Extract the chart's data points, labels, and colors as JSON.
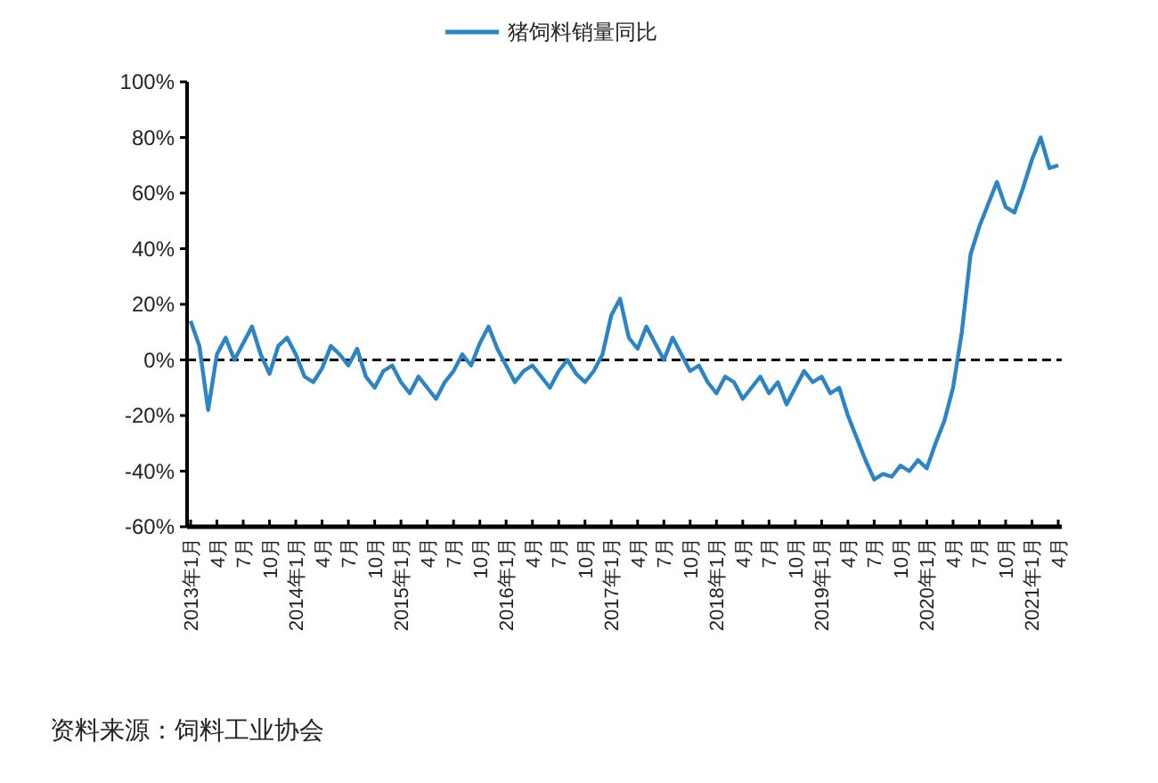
{
  "chart_data": {
    "type": "line",
    "categories": [
      "2013年1月",
      null,
      null,
      "4月",
      null,
      null,
      "7月",
      null,
      null,
      "10月",
      null,
      null,
      "2014年1月",
      null,
      null,
      "4月",
      null,
      null,
      "7月",
      null,
      null,
      "10月",
      null,
      null,
      "2015年1月",
      null,
      null,
      "4月",
      null,
      null,
      "7月",
      null,
      null,
      "10月",
      null,
      null,
      "2016年1月",
      null,
      null,
      "4月",
      null,
      null,
      "7月",
      null,
      null,
      "10月",
      null,
      null,
      "2017年1月",
      null,
      null,
      "4月",
      null,
      null,
      "7月",
      null,
      null,
      "10月",
      null,
      null,
      "2018年1月",
      null,
      null,
      "4月",
      null,
      null,
      "7月",
      null,
      null,
      "10月",
      null,
      null,
      "2019年1月",
      null,
      null,
      "4月",
      null,
      null,
      "7月",
      null,
      null,
      "10月",
      null,
      null,
      "2020年1月",
      null,
      null,
      "4月",
      null,
      null,
      "7月",
      null,
      null,
      "10月",
      null,
      null,
      "2021年1月",
      null,
      null,
      "4月"
    ],
    "series": [
      {
        "name": "猪饲料销量同比",
        "color": "#2a84c6",
        "values": [
          14,
          5,
          -18,
          2,
          8,
          0,
          6,
          12,
          2,
          -5,
          5,
          8,
          2,
          -6,
          -8,
          -3,
          5,
          2,
          -2,
          4,
          -6,
          -10,
          -4,
          -2,
          -8,
          -12,
          -6,
          -10,
          -14,
          -8,
          -4,
          2,
          -2,
          6,
          12,
          4,
          -2,
          -8,
          -4,
          -2,
          -6,
          -10,
          -4,
          0,
          -5,
          -8,
          -4,
          2,
          16,
          22,
          8,
          4,
          12,
          6,
          0,
          8,
          2,
          -4,
          -2,
          -8,
          -12,
          -6,
          -8,
          -14,
          -10,
          -6,
          -12,
          -8,
          -16,
          -10,
          -4,
          -8,
          -6,
          -12,
          -10,
          -20,
          -28,
          -36,
          -43,
          -41,
          -42,
          -38,
          -40,
          -36,
          -39,
          -30,
          -22,
          -10,
          10,
          38,
          48,
          56,
          64,
          55,
          53,
          62,
          72,
          80,
          69,
          70
        ]
      }
    ],
    "ylim": [
      -60,
      100
    ],
    "yticks": [
      {
        "value": -60,
        "label": "-60%"
      },
      {
        "value": -40,
        "label": "-40%"
      },
      {
        "value": -20,
        "label": "-20%"
      },
      {
        "value": 0,
        "label": "0%"
      },
      {
        "value": 20,
        "label": "20%"
      },
      {
        "value": 40,
        "label": "40%"
      },
      {
        "value": 60,
        "label": "60%"
      },
      {
        "value": 80,
        "label": "80%"
      },
      {
        "value": 100,
        "label": "100%"
      }
    ],
    "ref_lines": [
      {
        "axis": "y",
        "value": 0,
        "color": "#000000",
        "line_style": "dashed"
      }
    ],
    "legend": "top",
    "grid": false,
    "annotations": [
      "资料来源：饲料工业协会"
    ]
  }
}
